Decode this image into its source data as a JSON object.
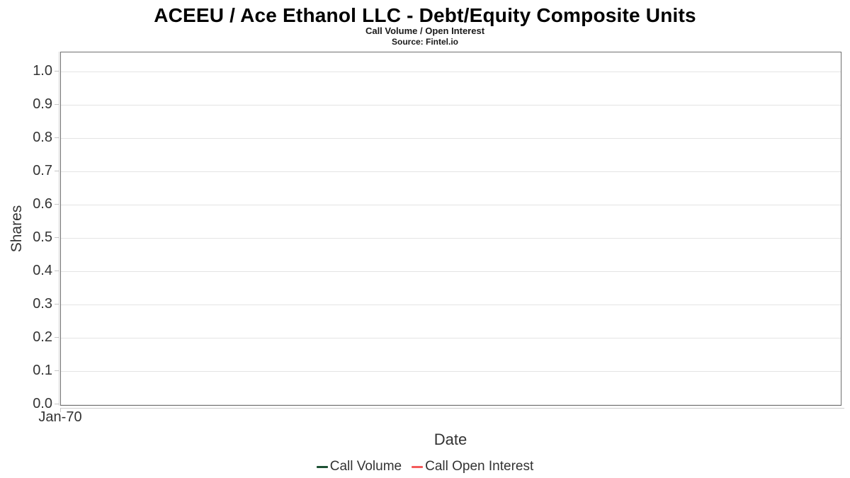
{
  "chart_data": {
    "type": "line",
    "title": "ACEEU / Ace Ethanol LLC - Debt/Equity Composite Units",
    "subtitle": "Call Volume / Open Interest",
    "source": "Source: Fintel.io",
    "xlabel": "Date",
    "ylabel": "Shares",
    "xticks": [
      "Jan-70"
    ],
    "yticks": [
      {
        "value": 0.0,
        "label": "0.0"
      },
      {
        "value": 0.1,
        "label": "0.1"
      },
      {
        "value": 0.2,
        "label": "0.2"
      },
      {
        "value": 0.3,
        "label": "0.3"
      },
      {
        "value": 0.4,
        "label": "0.4"
      },
      {
        "value": 0.5,
        "label": "0.5"
      },
      {
        "value": 0.6,
        "label": "0.6"
      },
      {
        "value": 0.7,
        "label": "0.7"
      },
      {
        "value": 0.8,
        "label": "0.8"
      },
      {
        "value": 0.9,
        "label": "0.9"
      },
      {
        "value": 1.0,
        "label": "1.0"
      }
    ],
    "ylim": [
      0,
      1.05
    ],
    "grid": true,
    "legend_position": "bottom-center",
    "series": [
      {
        "name": "Call Volume",
        "color": "#1d5134",
        "values": []
      },
      {
        "name": "Call Open Interest",
        "color": "#f45b5b",
        "values": []
      }
    ],
    "x": []
  }
}
